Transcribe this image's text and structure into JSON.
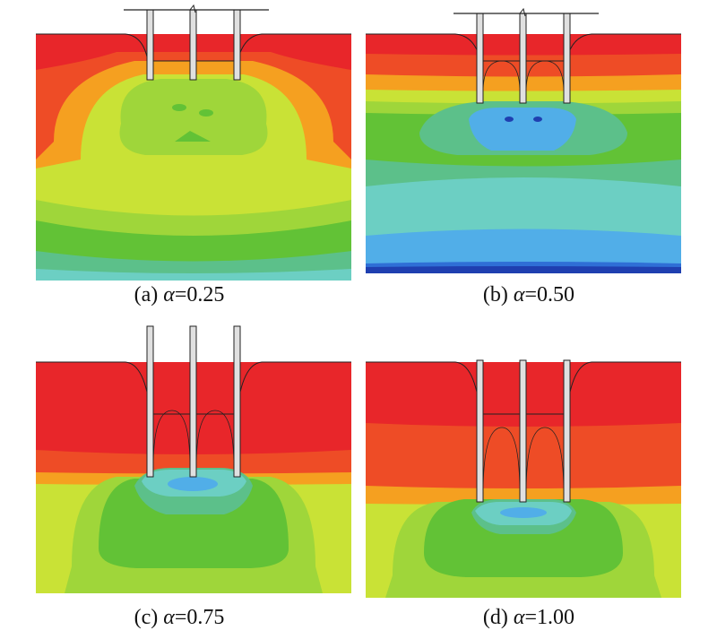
{
  "figure": {
    "panels": [
      {
        "id": "a",
        "prefix": "(a) ",
        "symbol": "α",
        "value": "=0.25"
      },
      {
        "id": "b",
        "prefix": "(b) ",
        "symbol": "α",
        "value": "=0.50"
      },
      {
        "id": "c",
        "prefix": "(c) ",
        "symbol": "α",
        "value": "=0.75"
      },
      {
        "id": "d",
        "prefix": "(d) ",
        "symbol": "α",
        "value": "=1.00"
      }
    ],
    "contour_colors": {
      "red": "#e8262a",
      "red_orange": "#ee4c26",
      "orange": "#f5a020",
      "yellow_green": "#c9e236",
      "light_green": "#9fd63a",
      "green": "#62c236",
      "mid_green": "#5cc08a",
      "teal": "#6ccfc3",
      "light_blue": "#51aee8",
      "blue": "#2f6fd6",
      "dark_blue": "#1f3fb0"
    },
    "pile_color": "#e0e0e0",
    "outline_color": "#222222"
  }
}
